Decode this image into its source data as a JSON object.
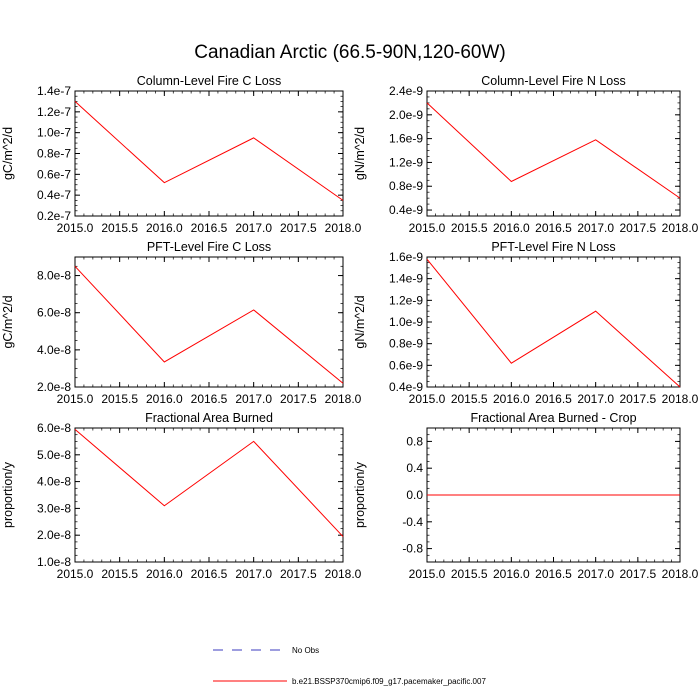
{
  "figure_title": "Canadian Arctic (66.5-90N,120-60W)",
  "legend": [
    {
      "label": "No Obs",
      "color": "#3b3bbf",
      "dash": true
    },
    {
      "label": "b.e21.BSSP370cmip6.f09_g17.pacemaker_pacific.007",
      "color": "#ff0000",
      "dash": false
    }
  ],
  "chart_data": [
    {
      "type": "line",
      "title": "Column-Level Fire C Loss",
      "ylabel": "gC/m^2/d",
      "xlim": [
        2015.0,
        2018.0
      ],
      "ylim": [
        2e-08,
        1.4e-07
      ],
      "xticks": [
        2015.0,
        2015.5,
        2016.0,
        2016.5,
        2017.0,
        2017.5,
        2018.0
      ],
      "xtick_labels": [
        "2015.0",
        "2015.5",
        "2016.0",
        "2016.5",
        "2017.0",
        "2017.5",
        "2018.0"
      ],
      "yticks": [
        2e-08,
        4e-08,
        6e-08,
        8e-08,
        1e-07,
        1.2e-07,
        1.4e-07
      ],
      "ytick_labels": [
        "0.2e-7",
        "0.4e-7",
        "0.6e-7",
        "0.8e-7",
        "1.0e-7",
        "1.2e-7",
        "1.4e-7"
      ],
      "series": [
        {
          "x": [
            2015,
            2016,
            2017,
            2018
          ],
          "values": [
            1.3e-07,
            5.2e-08,
            9.5e-08,
            3.5e-08
          ],
          "color": "#ff0000"
        }
      ]
    },
    {
      "type": "line",
      "title": "Column-Level Fire N Loss",
      "ylabel": "gN/m^2/d",
      "xlim": [
        2015.0,
        2018.0
      ],
      "ylim": [
        3e-10,
        2.4e-09
      ],
      "xticks": [
        2015.0,
        2015.5,
        2016.0,
        2016.5,
        2017.0,
        2017.5,
        2018.0
      ],
      "xtick_labels": [
        "2015.0",
        "2015.5",
        "2016.0",
        "2016.5",
        "2017.0",
        "2017.5",
        "2018.0"
      ],
      "yticks": [
        4e-10,
        8e-10,
        1.2e-09,
        1.6e-09,
        2e-09,
        2.4e-09
      ],
      "ytick_labels": [
        "0.4e-9",
        "0.8e-9",
        "1.2e-9",
        "1.6e-9",
        "2.0e-9",
        "2.4e-9"
      ],
      "series": [
        {
          "x": [
            2015,
            2016,
            2017,
            2018
          ],
          "values": [
            2.2e-09,
            8.8e-10,
            1.58e-09,
            6e-10
          ],
          "color": "#ff0000"
        }
      ]
    },
    {
      "type": "line",
      "title": "PFT-Level Fire C Loss",
      "ylabel": "gC/m^2/d",
      "xlim": [
        2015.0,
        2018.0
      ],
      "ylim": [
        2e-08,
        9e-08
      ],
      "xticks": [
        2015.0,
        2015.5,
        2016.0,
        2016.5,
        2017.0,
        2017.5,
        2018.0
      ],
      "xtick_labels": [
        "2015.0",
        "2015.5",
        "2016.0",
        "2016.5",
        "2017.0",
        "2017.5",
        "2018.0"
      ],
      "yticks": [
        2e-08,
        4e-08,
        6e-08,
        8e-08
      ],
      "ytick_labels": [
        "2.0e-8",
        "4.0e-8",
        "6.0e-8",
        "8.0e-8"
      ],
      "series": [
        {
          "x": [
            2015,
            2016,
            2017,
            2018
          ],
          "values": [
            8.5e-08,
            3.35e-08,
            6.15e-08,
            2.2e-08
          ],
          "color": "#ff0000"
        }
      ]
    },
    {
      "type": "line",
      "title": "PFT-Level Fire N Loss",
      "ylabel": "gN/m^2/d",
      "xlim": [
        2015.0,
        2018.0
      ],
      "ylim": [
        4e-10,
        1.6e-09
      ],
      "xticks": [
        2015.0,
        2015.5,
        2016.0,
        2016.5,
        2017.0,
        2017.5,
        2018.0
      ],
      "xtick_labels": [
        "2015.0",
        "2015.5",
        "2016.0",
        "2016.5",
        "2017.0",
        "2017.5",
        "2018.0"
      ],
      "yticks": [
        4e-10,
        6e-10,
        8e-10,
        1e-09,
        1.2e-09,
        1.4e-09,
        1.6e-09
      ],
      "ytick_labels": [
        "0.4e-9",
        "0.6e-9",
        "0.8e-9",
        "1.0e-9",
        "1.2e-9",
        "1.4e-9",
        "1.6e-9"
      ],
      "series": [
        {
          "x": [
            2015,
            2016,
            2017,
            2018
          ],
          "values": [
            1.58e-09,
            6.2e-10,
            1.1e-09,
            4e-10
          ],
          "color": "#ff0000"
        }
      ]
    },
    {
      "type": "line",
      "title": "Fractional Area Burned",
      "ylabel": "proportion/y",
      "xlim": [
        2015.0,
        2018.0
      ],
      "ylim": [
        1e-08,
        6e-08
      ],
      "xticks": [
        2015.0,
        2015.5,
        2016.0,
        2016.5,
        2017.0,
        2017.5,
        2018.0
      ],
      "xtick_labels": [
        "2015.0",
        "2015.5",
        "2016.0",
        "2016.5",
        "2017.0",
        "2017.5",
        "2018.0"
      ],
      "yticks": [
        1e-08,
        2e-08,
        3e-08,
        4e-08,
        5e-08,
        6e-08
      ],
      "ytick_labels": [
        "1.0e-8",
        "2.0e-8",
        "3.0e-8",
        "4.0e-8",
        "5.0e-8",
        "6.0e-8"
      ],
      "series": [
        {
          "x": [
            2015,
            2016,
            2017,
            2018
          ],
          "values": [
            5.95e-08,
            3.1e-08,
            5.5e-08,
            1.95e-08
          ],
          "color": "#ff0000"
        }
      ]
    },
    {
      "type": "line",
      "title": "Fractional Area Burned - Crop",
      "ylabel": "proportion/y",
      "xlim": [
        2015.0,
        2018.0
      ],
      "ylim": [
        -1.0,
        1.0
      ],
      "xticks": [
        2015.0,
        2015.5,
        2016.0,
        2016.5,
        2017.0,
        2017.5,
        2018.0
      ],
      "xtick_labels": [
        "2015.0",
        "2015.5",
        "2016.0",
        "2016.5",
        "2017.0",
        "2017.5",
        "2018.0"
      ],
      "yticks": [
        -0.8,
        -0.4,
        0.0,
        0.4,
        0.8
      ],
      "ytick_labels": [
        "-0.8",
        "-0.4",
        "0.0",
        "0.4",
        "0.8"
      ],
      "series": [
        {
          "x": [
            2015,
            2016,
            2017,
            2018
          ],
          "values": [
            0,
            0,
            0,
            0
          ],
          "color": "#ff0000"
        }
      ]
    }
  ]
}
